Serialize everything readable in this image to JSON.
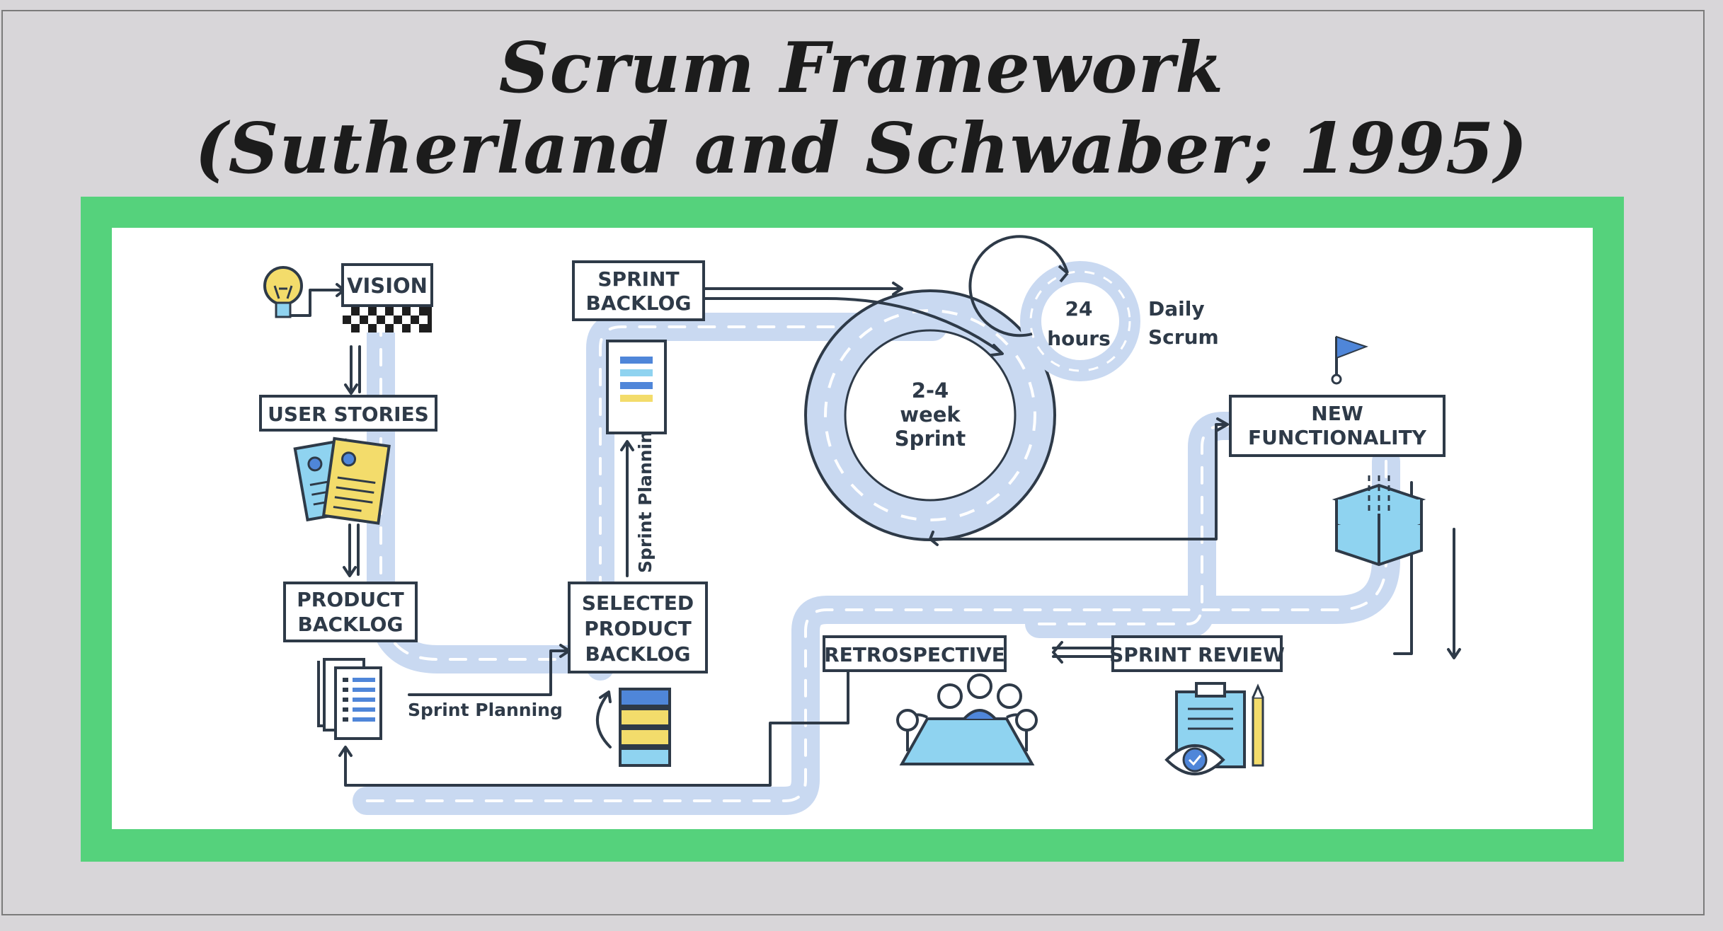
{
  "title": {
    "line1": "Scrum Framework",
    "line2": "(Sutherland and Schwaber; 1995)"
  },
  "diagram": {
    "vision": "VISION",
    "user_stories": "USER STORIES",
    "product_backlog": [
      "PRODUCT",
      "BACKLOG"
    ],
    "sprint_planning": "Sprint Planning",
    "selected_product_backlog": [
      "SELECTED",
      "PRODUCT",
      "BACKLOG"
    ],
    "sprint_planning_vertical": "Sprint Planning",
    "sprint_backlog": [
      "SPRINT",
      "BACKLOG"
    ],
    "sprint_cycle": [
      "2-4",
      "week",
      "Sprint"
    ],
    "daily_cycle": [
      "24",
      "hours"
    ],
    "daily_scrum": [
      "Daily",
      "Scrum"
    ],
    "new_functionality": [
      "NEW",
      "FUNCTIONALITY"
    ],
    "sprint_review": "SPRINT REVIEW",
    "retrospective": "RETROSPECTIVE"
  },
  "colors": {
    "background": "#d8d6d9",
    "frame_green": "#55d27c",
    "road": "#c9d9f1",
    "ink": "#2e3a48",
    "accent_blue": "#4f86d9",
    "accent_yellow": "#f3dc6b",
    "accent_cyan": "#8fd3f0"
  }
}
